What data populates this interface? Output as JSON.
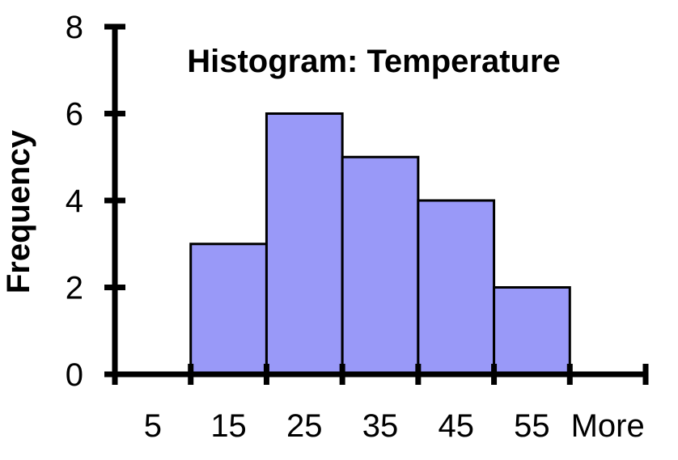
{
  "chart_data": {
    "type": "bar",
    "title": "Histogram: Temperature",
    "xlabel": "",
    "ylabel": "Frequency",
    "categories": [
      "5",
      "15",
      "25",
      "35",
      "45",
      "55",
      "More"
    ],
    "values": [
      0,
      3,
      6,
      5,
      4,
      2,
      0
    ],
    "ylim": [
      0,
      8
    ],
    "yticks": [
      "0",
      "2",
      "4",
      "6",
      "8"
    ],
    "grid": false,
    "legend": "none",
    "colors": {
      "bar_fill": "#9999f8",
      "bar_stroke": "#000000",
      "axis": "#000000"
    }
  }
}
